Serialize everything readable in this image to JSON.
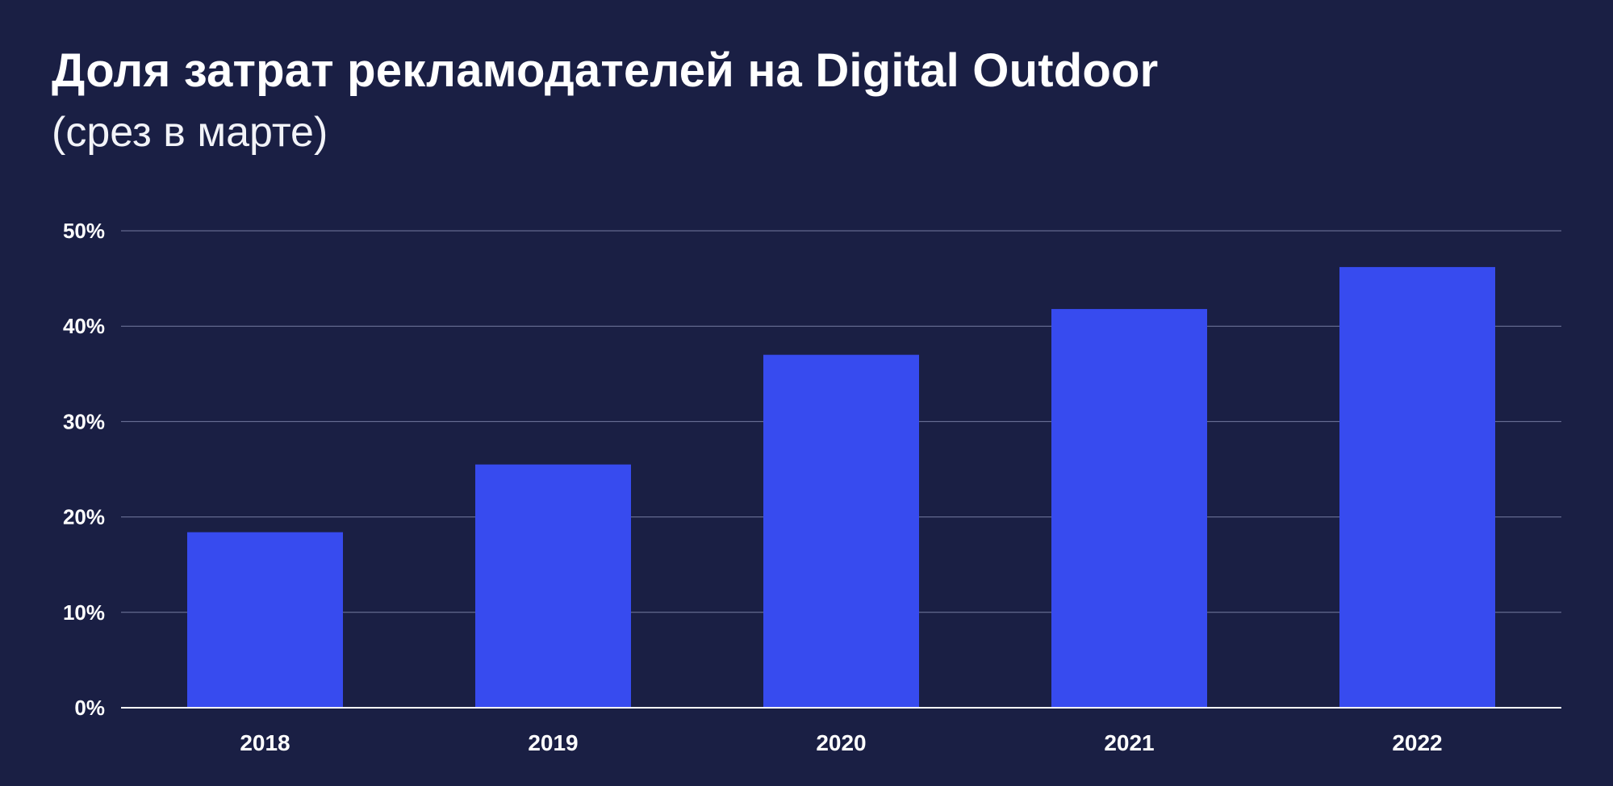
{
  "colors": {
    "background": "#1a1f44",
    "bar": "#374bef",
    "text": "#ffffff",
    "grid": "#8b91b8"
  },
  "chart_data": {
    "type": "bar",
    "title": "Доля затрат рекламодателей на Digital Outdoor",
    "subtitle": "(срез в марте)",
    "categories": [
      "2018",
      "2019",
      "2020",
      "2021",
      "2022"
    ],
    "values": [
      18.4,
      25.5,
      37.0,
      41.8,
      46.2
    ],
    "ylim": [
      0,
      50
    ],
    "yticks": [
      0,
      10,
      20,
      30,
      40,
      50
    ],
    "ytick_labels": [
      "0%",
      "10%",
      "20%",
      "30%",
      "40%",
      "50%"
    ],
    "grid": true,
    "legend": "none"
  }
}
